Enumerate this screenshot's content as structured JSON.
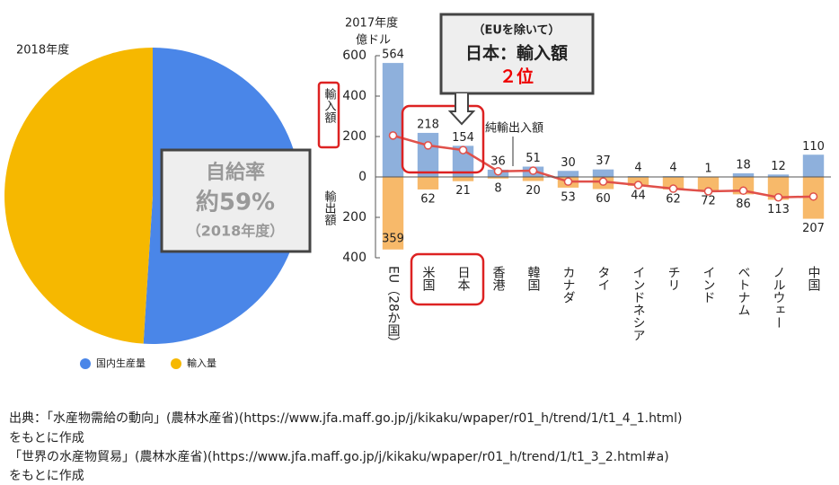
{
  "chart_data": [
    {
      "type": "pie",
      "title": "2018年度",
      "categories": [
        "国内生産量",
        "輸入量"
      ],
      "values": [
        51,
        49
      ],
      "colors": [
        "#4a86e8",
        "#f6b800"
      ],
      "legend": "bottom",
      "annotation": {
        "title": "自給率",
        "value": "約59%",
        "note": "（2018年度）"
      }
    },
    {
      "type": "bar",
      "title": "2017年度",
      "unit": "億ドル",
      "categories": [
        "EU（28か国）",
        "米国",
        "日本",
        "香港",
        "韓国",
        "カナダ",
        "タイ",
        "インドネシア",
        "チリ",
        "インド",
        "ベトナム",
        "ノルウェー",
        "中国"
      ],
      "series": [
        {
          "name": "輸入額",
          "color": "#8eb0dc",
          "values": [
            564,
            218,
            154,
            36,
            51,
            30,
            37,
            4,
            4,
            1,
            18,
            12,
            110
          ]
        },
        {
          "name": "輸出額",
          "color": "#f7b96a",
          "values": [
            -359,
            -62,
            -21,
            -8,
            -20,
            -53,
            -60,
            -44,
            -62,
            -72,
            -86,
            -113,
            -207
          ],
          "value_labels": [
            "359",
            "62",
            "21",
            "8",
            "20",
            "53",
            "60",
            "44",
            "62",
            "72",
            "86",
            "113",
            "207"
          ]
        },
        {
          "name": "純輸出入額",
          "type": "line",
          "color": "#e0504a",
          "values": [
            205,
            156,
            133,
            28,
            31,
            -23,
            -23,
            -40,
            -58,
            -71,
            -68,
            -101,
            -97
          ]
        }
      ],
      "ylim": [
        -400,
        600
      ],
      "yticks": [
        {
          "value": -400,
          "label": "400"
        },
        {
          "value": -200,
          "label": "200"
        },
        0,
        200,
        400,
        600
      ],
      "callout": {
        "title": "（EUを除いて）",
        "text": "日本：輸入額",
        "rank": "２位"
      }
    }
  ],
  "source": [
    "出典：「水産物需給の動向」(農林水産省)(https://www.jfa.maff.go.jp/j/kikaku/wpaper/r01_h/trend/1/t1_4_1.html)",
    "をもとに作成",
    "「世界の水産物貿易」(農林水産省)(https://www.jfa.maff.go.jp/j/kikaku/wpaper/r01_h/trend/1/t1_3_2.html#a)",
    "をもとに作成"
  ]
}
